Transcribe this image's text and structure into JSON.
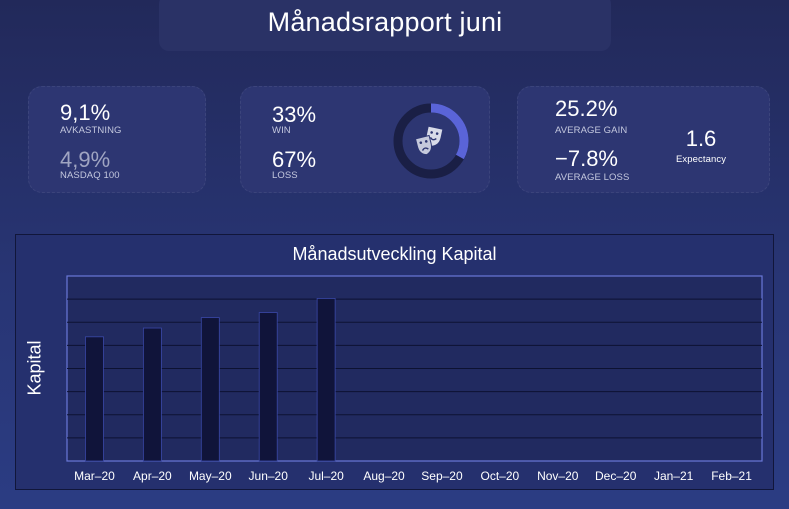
{
  "header": {
    "title": "Månadsrapport juni"
  },
  "kpi": {
    "return_value": "9,1%",
    "return_label": "AVKASTNING",
    "benchmark_value": "4,9%",
    "benchmark_label": "NASDAQ 100",
    "win_value": "33%",
    "win_label": "WIN",
    "loss_value": "67%",
    "loss_label": "LOSS",
    "avg_gain_value": "25.2%",
    "avg_gain_label": "AVERAGE GAIN",
    "avg_loss_value": "−7.8%",
    "avg_loss_label": "AVERAGE LOSS",
    "expectancy_value": "1.6",
    "expectancy_label": "Expectancy",
    "donut_fraction": 0.33,
    "donut_icon": "theater-masks-icon"
  },
  "colors": {
    "accent": "#5a64d8",
    "bar_fill": "#10143a",
    "background": "#2b3577"
  },
  "chart_data": {
    "type": "bar",
    "title": "Månadsutveckling Kapital",
    "xlabel": "",
    "ylabel": "Kapital",
    "categories": [
      "Mar‒20",
      "Apr‒20",
      "May‒20",
      "Jun‒20",
      "Jul‒20",
      "Aug‒20",
      "Sep‒20",
      "Oct‒20",
      "Nov‒20",
      "Dec‒20",
      "Jan‒21",
      "Feb‒21"
    ],
    "values": [
      5.37,
      5.75,
      6.2,
      6.42,
      7.03,
      null,
      null,
      null,
      null,
      null,
      null,
      null
    ],
    "ylim": [
      0,
      8
    ],
    "grid": true,
    "y_tick_labels_visible": false
  }
}
